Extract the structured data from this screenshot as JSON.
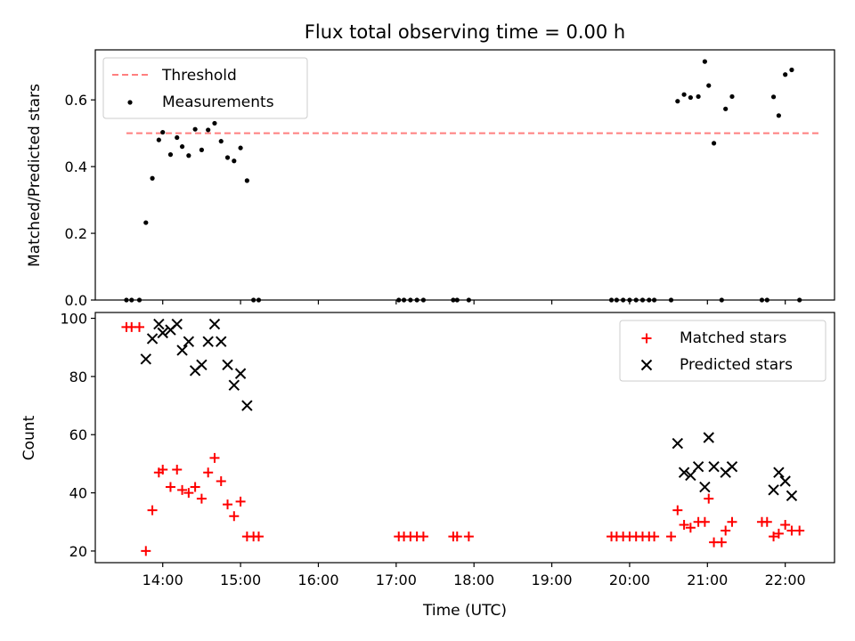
{
  "chart_data": [
    {
      "type": "scatter",
      "title": "Flux total observing time = 0.00 h",
      "xlabel": "",
      "ylabel": "Matched/Predicted stars",
      "ylim": [
        0,
        0.75
      ],
      "xlim": [
        "13:08",
        "22:38"
      ],
      "yticks": [
        0.0,
        0.2,
        0.4,
        0.6
      ],
      "ytick_labels": [
        "0.0",
        "0.2",
        "0.4",
        "0.6"
      ],
      "legend_position": "top-left",
      "threshold": {
        "name": "Threshold",
        "value": 0.5,
        "x_start": "13:32",
        "x_end": "22:28",
        "color": "#ff7f7f",
        "style": "dashed"
      },
      "series": [
        {
          "name": "Measurements",
          "color": "#000000",
          "marker": "dot",
          "points": [
            [
              "13:32",
              0.0
            ],
            [
              "13:36",
              0.0
            ],
            [
              "13:42",
              0.0
            ],
            [
              "13:47",
              0.232
            ],
            [
              "13:52",
              0.365
            ],
            [
              "13:57",
              0.48
            ],
            [
              "14:00",
              0.503
            ],
            [
              "14:06",
              0.436
            ],
            [
              "14:11",
              0.487
            ],
            [
              "14:15",
              0.46
            ],
            [
              "14:20",
              0.433
            ],
            [
              "14:25",
              0.512
            ],
            [
              "14:30",
              0.45
            ],
            [
              "14:35",
              0.51
            ],
            [
              "14:40",
              0.53
            ],
            [
              "14:45",
              0.476
            ],
            [
              "14:50",
              0.427
            ],
            [
              "14:55",
              0.417
            ],
            [
              "15:00",
              0.456
            ],
            [
              "15:05",
              0.358
            ],
            [
              "15:10",
              0.0
            ],
            [
              "15:14",
              0.0
            ],
            [
              "17:02",
              0.0
            ],
            [
              "17:06",
              0.0
            ],
            [
              "17:11",
              0.0
            ],
            [
              "17:16",
              0.0
            ],
            [
              "17:21",
              0.0
            ],
            [
              "17:44",
              0.0
            ],
            [
              "17:47",
              0.0
            ],
            [
              "17:56",
              0.0
            ],
            [
              "19:46",
              0.0
            ],
            [
              "19:50",
              0.0
            ],
            [
              "19:55",
              0.0
            ],
            [
              "20:00",
              0.0
            ],
            [
              "20:05",
              0.0
            ],
            [
              "20:10",
              0.0
            ],
            [
              "20:15",
              0.0
            ],
            [
              "20:19",
              0.0
            ],
            [
              "20:32",
              0.0
            ],
            [
              "20:37",
              0.596
            ],
            [
              "20:42",
              0.616
            ],
            [
              "20:47",
              0.607
            ],
            [
              "20:53",
              0.61
            ],
            [
              "20:58",
              0.715
            ],
            [
              "21:01",
              0.643
            ],
            [
              "21:05",
              0.47
            ],
            [
              "21:11",
              0.0
            ],
            [
              "21:14",
              0.573
            ],
            [
              "21:19",
              0.61
            ],
            [
              "21:42",
              0.0
            ],
            [
              "21:46",
              0.0
            ],
            [
              "21:51",
              0.609
            ],
            [
              "21:55",
              0.553
            ],
            [
              "22:00",
              0.676
            ],
            [
              "22:05",
              0.69
            ],
            [
              "22:11",
              0.0
            ]
          ]
        }
      ]
    },
    {
      "type": "scatter",
      "title": "",
      "xlabel": "Time (UTC)",
      "ylabel": "Count",
      "ylim": [
        16,
        102
      ],
      "xlim": [
        "13:08",
        "22:38"
      ],
      "yticks": [
        20,
        40,
        60,
        80,
        100
      ],
      "ytick_labels": [
        "20",
        "40",
        "60",
        "80",
        "100"
      ],
      "xticks": [
        "14:00",
        "15:00",
        "16:00",
        "17:00",
        "18:00",
        "19:00",
        "20:00",
        "21:00",
        "22:00"
      ],
      "xtick_labels": [
        "14:00",
        "15:00",
        "16:00",
        "17:00",
        "18:00",
        "19:00",
        "20:00",
        "21:00",
        "22:00"
      ],
      "legend_position": "top-right",
      "series": [
        {
          "name": "Matched stars",
          "color": "#ff0000",
          "marker": "plus",
          "points": [
            [
              "13:32",
              97
            ],
            [
              "13:36",
              97
            ],
            [
              "13:42",
              97
            ],
            [
              "13:47",
              20
            ],
            [
              "13:52",
              34
            ],
            [
              "13:57",
              47
            ],
            [
              "14:00",
              48
            ],
            [
              "14:06",
              42
            ],
            [
              "14:11",
              48
            ],
            [
              "14:15",
              41
            ],
            [
              "14:20",
              40
            ],
            [
              "14:25",
              42
            ],
            [
              "14:30",
              38
            ],
            [
              "14:35",
              47
            ],
            [
              "14:40",
              52
            ],
            [
              "14:45",
              44
            ],
            [
              "14:50",
              36
            ],
            [
              "14:55",
              32
            ],
            [
              "15:00",
              37
            ],
            [
              "15:05",
              25
            ],
            [
              "15:10",
              25
            ],
            [
              "15:14",
              25
            ],
            [
              "17:02",
              25
            ],
            [
              "17:06",
              25
            ],
            [
              "17:11",
              25
            ],
            [
              "17:16",
              25
            ],
            [
              "17:21",
              25
            ],
            [
              "17:44",
              25
            ],
            [
              "17:47",
              25
            ],
            [
              "17:56",
              25
            ],
            [
              "19:46",
              25
            ],
            [
              "19:50",
              25
            ],
            [
              "19:55",
              25
            ],
            [
              "20:00",
              25
            ],
            [
              "20:05",
              25
            ],
            [
              "20:10",
              25
            ],
            [
              "20:15",
              25
            ],
            [
              "20:19",
              25
            ],
            [
              "20:32",
              25
            ],
            [
              "20:37",
              34
            ],
            [
              "20:42",
              29
            ],
            [
              "20:47",
              28
            ],
            [
              "20:53",
              30
            ],
            [
              "20:58",
              30
            ],
            [
              "21:01",
              38
            ],
            [
              "21:05",
              23
            ],
            [
              "21:11",
              23
            ],
            [
              "21:14",
              27
            ],
            [
              "21:19",
              30
            ],
            [
              "21:42",
              30
            ],
            [
              "21:46",
              30
            ],
            [
              "21:51",
              25
            ],
            [
              "21:55",
              26
            ],
            [
              "22:00",
              29
            ],
            [
              "22:05",
              27
            ],
            [
              "22:11",
              27
            ]
          ]
        },
        {
          "name": "Predicted stars",
          "color": "#000000",
          "marker": "x",
          "points": [
            [
              "13:47",
              86
            ],
            [
              "13:52",
              93
            ],
            [
              "13:57",
              98
            ],
            [
              "14:00",
              95
            ],
            [
              "14:06",
              96
            ],
            [
              "14:11",
              98
            ],
            [
              "14:15",
              89
            ],
            [
              "14:20",
              92
            ],
            [
              "14:25",
              82
            ],
            [
              "14:30",
              84
            ],
            [
              "14:35",
              92
            ],
            [
              "14:40",
              98
            ],
            [
              "14:45",
              92
            ],
            [
              "14:50",
              84
            ],
            [
              "14:55",
              77
            ],
            [
              "15:00",
              81
            ],
            [
              "15:05",
              70
            ],
            [
              "20:37",
              57
            ],
            [
              "20:42",
              47
            ],
            [
              "20:47",
              46
            ],
            [
              "20:53",
              49
            ],
            [
              "20:58",
              42
            ],
            [
              "21:01",
              59
            ],
            [
              "21:05",
              49
            ],
            [
              "21:14",
              47
            ],
            [
              "21:19",
              49
            ],
            [
              "21:51",
              41
            ],
            [
              "21:55",
              47
            ],
            [
              "22:00",
              44
            ],
            [
              "22:05",
              39
            ]
          ]
        }
      ]
    }
  ]
}
